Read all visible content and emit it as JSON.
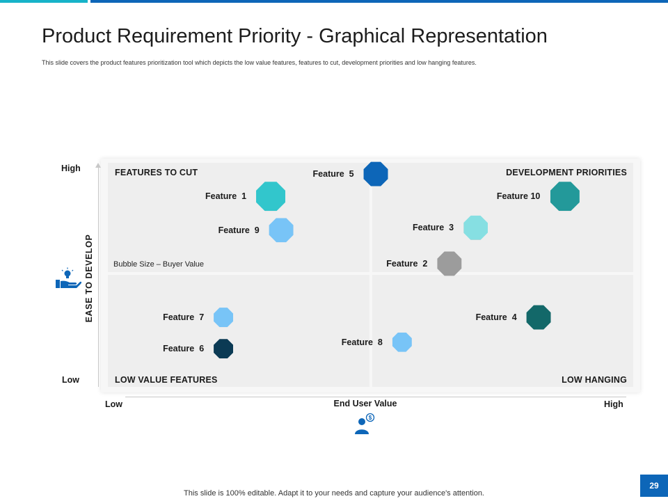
{
  "header": {
    "title": "Product Requirement Priority - Graphical Representation",
    "subtitle": "This slide covers the product features prioritization tool which depicts the low value features, features to cut, development priorities and low hanging features."
  },
  "chart_data": {
    "type": "scatter",
    "xlabel": "End User Value",
    "ylabel": "EASE TO DEVELOP",
    "x_low_label": "Low",
    "x_high_label": "High",
    "y_low_label": "Low",
    "y_high_label": "High",
    "xlim": [
      0,
      100
    ],
    "ylim": [
      0,
      100
    ],
    "size_note": "Bubble Size – Buyer Value",
    "quadrants": {
      "top_left": "FEATURES TO CUT",
      "top_right": "DEVELOPMENT PRIORITIES",
      "bottom_left": "LOW VALUE FEATURES",
      "bottom_right": "LOW HANGING"
    },
    "points": [
      {
        "label": "Feature  1",
        "x": 31,
        "y": 85,
        "size": 3.0,
        "color": "#32c6cc"
      },
      {
        "label": "Feature  9",
        "x": 33,
        "y": 70,
        "size": 2.5,
        "color": "#78c4f7"
      },
      {
        "label": "Feature  5",
        "x": 51,
        "y": 95,
        "size": 2.5,
        "color": "#0d66b8"
      },
      {
        "label": "Feature 10",
        "x": 87,
        "y": 85,
        "size": 3.0,
        "color": "#23999a"
      },
      {
        "label": "Feature  3",
        "x": 70,
        "y": 71,
        "size": 2.5,
        "color": "#86dfe2"
      },
      {
        "label": "Feature  2",
        "x": 65,
        "y": 55,
        "size": 2.5,
        "color": "#9c9c9c"
      },
      {
        "label": "Feature  4",
        "x": 82,
        "y": 31,
        "size": 2.5,
        "color": "#136869"
      },
      {
        "label": "Feature  7",
        "x": 22,
        "y": 31,
        "size": 2.0,
        "color": "#78c4f7"
      },
      {
        "label": "Feature  6",
        "x": 22,
        "y": 17,
        "size": 2.0,
        "color": "#0b3a54"
      },
      {
        "label": "Feature  8",
        "x": 56,
        "y": 20,
        "size": 2.0,
        "color": "#78c4f7"
      }
    ]
  },
  "icons": {
    "y_axis_icon": "hand-lightbulb-icon",
    "x_axis_icon": "user-dollar-icon"
  },
  "footer": {
    "note": "This slide is 100% editable. Adapt it to your needs and capture your audience's attention.",
    "page_number": "29"
  },
  "colors": {
    "accent_teal": "#17b3c9",
    "accent_blue": "#0d66b8"
  }
}
